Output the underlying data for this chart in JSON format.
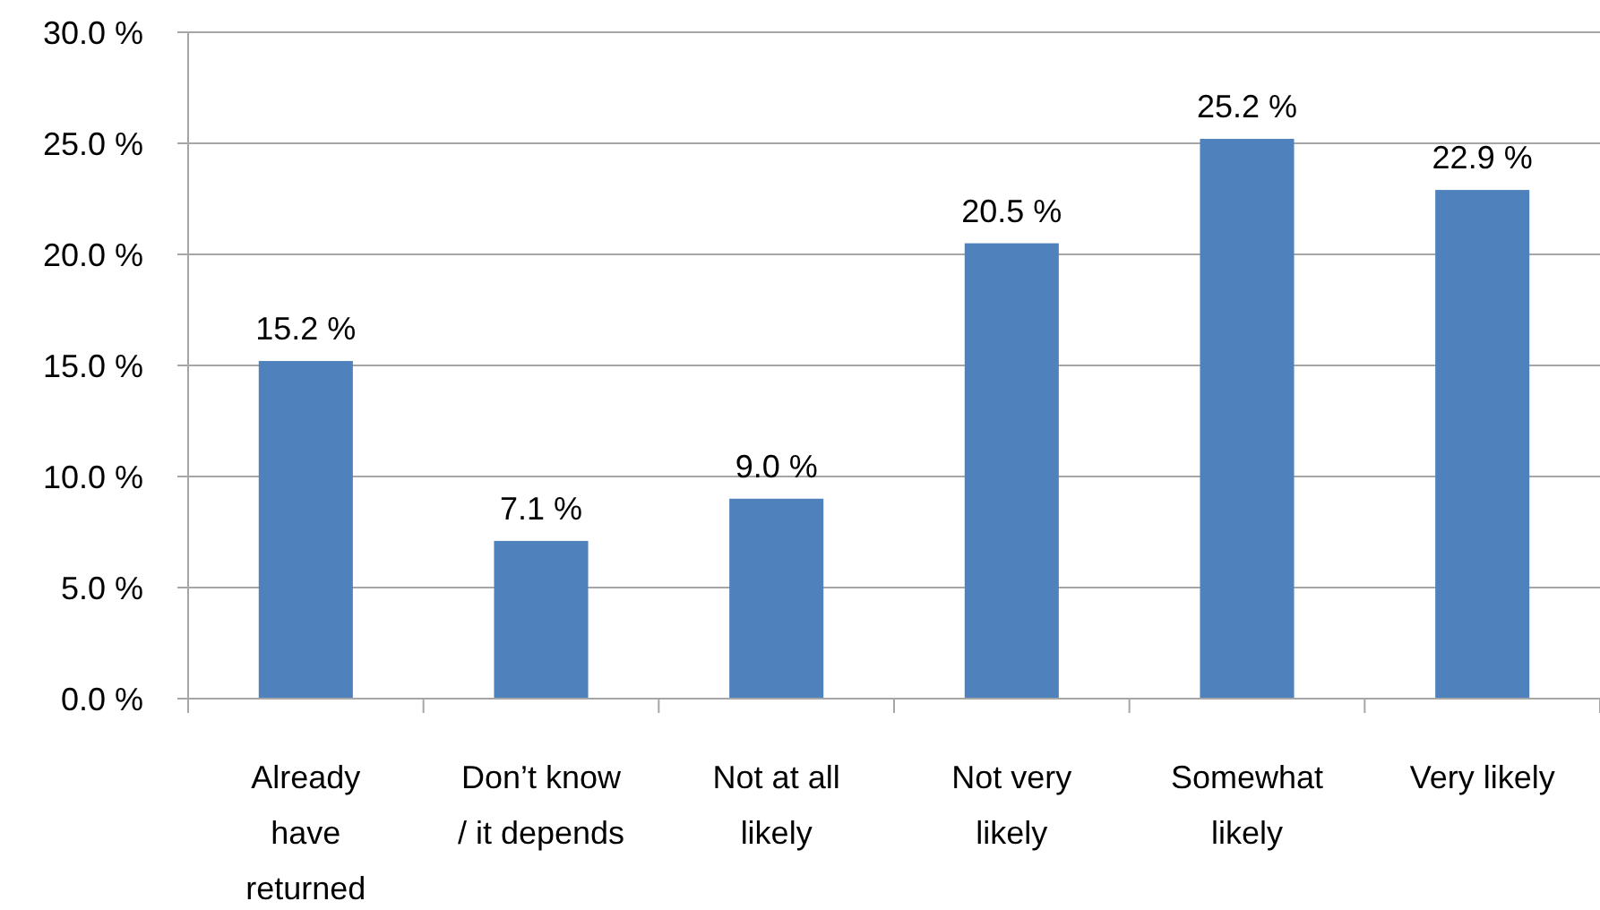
{
  "chart_data": {
    "type": "bar",
    "categories": [
      "Already have returned",
      "Don’t know / it depends",
      "Not at all likely",
      "Not very likely",
      "Somewhat likely",
      "Very likely"
    ],
    "values": [
      15.2,
      7.1,
      9.0,
      20.5,
      25.2,
      22.9
    ],
    "value_labels": [
      "15.2 %",
      "7.1 %",
      "9.0 %",
      "20.5 %",
      "25.2 %",
      "22.9 %"
    ],
    "color": "#4f81bd",
    "ylim": [
      0,
      30
    ],
    "yticks": [
      {
        "value": 0,
        "label": "0.0 %"
      },
      {
        "value": 5,
        "label": "5.0 %"
      },
      {
        "value": 10,
        "label": "10.0 %"
      },
      {
        "value": 15,
        "label": "15.0 %"
      },
      {
        "value": 20,
        "label": "20.0 %"
      },
      {
        "value": 25,
        "label": "25.0 %"
      },
      {
        "value": 30,
        "label": "30.0 %"
      }
    ],
    "grid": "y"
  }
}
